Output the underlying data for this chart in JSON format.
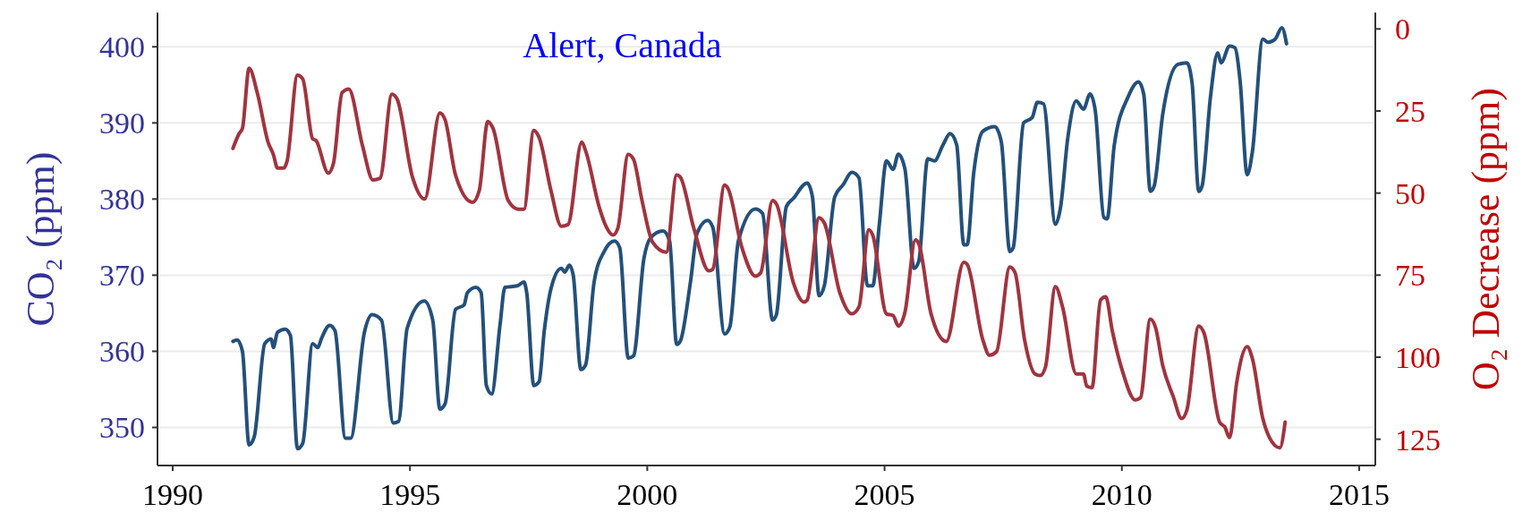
{
  "chart_data": {
    "type": "line",
    "title": "Alert, Canada",
    "ylabel": "CO₂ (ppm)",
    "y2label": "O₂ Decrease (ppm)",
    "xlim": [
      1989.68,
      2015.34
    ],
    "xticks": [
      1990,
      1995,
      2000,
      2005,
      2010,
      2015
    ],
    "ylim": [
      345,
      404.5
    ],
    "yticks": [
      350,
      360,
      370,
      380,
      390,
      400
    ],
    "y2lim": [
      133,
      -5
    ],
    "y2ticks": [
      0,
      25,
      50,
      75,
      100,
      125
    ],
    "grid": "y",
    "line_style": "solid",
    "series": [
      {
        "color": "#24507a",
        "x": [
          1991.27,
          1991.36,
          1991.47,
          1991.61,
          1991.72,
          1991.94,
          1992.08,
          1992.12,
          1992.21,
          1992.37,
          1992.48,
          1992.63,
          1992.74,
          1992.95,
          1993.06,
          1993.13,
          1993.31,
          1993.42,
          1993.64,
          1993.75,
          1994.04,
          1994.2,
          1994.4,
          1994.65,
          1994.76,
          1994.94,
          1995.3,
          1995.48,
          1995.63,
          1995.74,
          1995.96,
          1996.14,
          1996.21,
          1996.39,
          1996.5,
          1996.61,
          1996.72,
          1996.9,
          1997.0,
          1997.26,
          1997.4,
          1997.46,
          1997.61,
          1997.72,
          1997.83,
          1997.97,
          1998.19,
          1998.26,
          1998.36,
          1998.44,
          1998.6,
          1998.7,
          1998.88,
          1999.09,
          1999.31,
          1999.42,
          1999.6,
          1999.71,
          1999.93,
          2000.07,
          2000.33,
          2000.47,
          2000.62,
          2000.7,
          2000.91,
          2001.05,
          2001.27,
          2001.38,
          2001.63,
          2001.74,
          2001.92,
          2002.28,
          2002.43,
          2002.64,
          2002.72,
          2002.93,
          2003.08,
          2003.37,
          2003.48,
          2003.62,
          2003.73,
          2003.95,
          2004.13,
          2004.31,
          2004.46,
          2004.64,
          2004.75,
          2004.89,
          2005.04,
          2005.18,
          2005.29,
          2005.43,
          2005.62,
          2005.72,
          2005.91,
          2006.05,
          2006.23,
          2006.38,
          2006.52,
          2006.67,
          2006.74,
          2006.88,
          2007.07,
          2007.32,
          2007.46,
          2007.64,
          2007.71,
          2007.93,
          2008.11,
          2008.22,
          2008.35,
          2008.6,
          2008.71,
          2008.86,
          2009.04,
          2009.19,
          2009.33,
          2009.44,
          2009.62,
          2009.69,
          2009.84,
          2010.13,
          2010.35,
          2010.46,
          2010.6,
          2010.68,
          2010.86,
          2011.18,
          2011.37,
          2011.48,
          2011.62,
          2011.69,
          2011.87,
          2012.02,
          2012.09,
          2012.27,
          2012.38,
          2012.49,
          2012.64,
          2012.75,
          2012.97,
          2013.08,
          2013.23,
          2013.37,
          2013.47
        ],
        "values": [
          361.3,
          361.5,
          360.0,
          347.7,
          348.8,
          361.0,
          361.6,
          360.5,
          362.5,
          362.9,
          362.1,
          347.2,
          347.9,
          361.0,
          360.5,
          361.6,
          363.4,
          362.7,
          348.6,
          348.6,
          362.5,
          364.8,
          364.1,
          350.6,
          350.8,
          363.0,
          366.6,
          364.1,
          352.4,
          353.1,
          365.5,
          366.1,
          367.7,
          368.4,
          367.7,
          355.5,
          354.4,
          363.6,
          368.4,
          368.6,
          369.1,
          367.7,
          355.5,
          356.0,
          362.7,
          368.2,
          370.9,
          370.4,
          371.3,
          370.0,
          357.6,
          358.2,
          369.1,
          373.1,
          374.5,
          373.6,
          359.1,
          359.4,
          372.2,
          374.9,
          375.8,
          374.5,
          360.9,
          361.4,
          369.1,
          375.5,
          377.2,
          376.3,
          362.3,
          363.2,
          374.5,
          378.7,
          378.1,
          364.1,
          364.8,
          379.0,
          380.1,
          382.1,
          380.3,
          367.3,
          368.6,
          380.3,
          381.9,
          383.5,
          382.8,
          368.6,
          368.6,
          376.7,
          385.0,
          383.9,
          385.9,
          383.9,
          370.9,
          371.8,
          385.3,
          385.0,
          387.1,
          388.6,
          387.1,
          374.0,
          374.0,
          383.5,
          388.9,
          389.5,
          387.5,
          373.1,
          373.6,
          390.0,
          390.7,
          392.7,
          392.5,
          376.7,
          379.0,
          388.0,
          392.9,
          391.8,
          393.8,
          391.6,
          377.6,
          377.4,
          387.1,
          393.4,
          395.4,
          393.8,
          381.0,
          381.7,
          391.1,
          397.7,
          397.9,
          395.2,
          381.0,
          381.7,
          393.6,
          399.2,
          397.9,
          400.1,
          399.9,
          395.6,
          383.2,
          386.2,
          401.0,
          400.6,
          401.0,
          402.5,
          400.4
        ]
      },
      {
        "color": "#a0343f",
        "axis": "y2",
        "x": [
          1991.27,
          1991.4,
          1991.47,
          1991.61,
          1991.79,
          1992.01,
          1992.12,
          1992.21,
          1992.34,
          1992.41,
          1992.63,
          1992.74,
          1992.95,
          1993.02,
          1993.28,
          1993.39,
          1993.57,
          1993.71,
          1994.0,
          1994.22,
          1994.37,
          1994.62,
          1994.73,
          1995.05,
          1995.31,
          1995.63,
          1995.74,
          1995.96,
          1996.32,
          1996.46,
          1996.64,
          1996.75,
          1997.07,
          1997.28,
          1997.4,
          1997.61,
          1997.72,
          1997.97,
          1998.19,
          1998.33,
          1998.62,
          1998.7,
          1998.99,
          1999.13,
          1999.28,
          1999.38,
          1999.6,
          1999.71,
          1999.89,
          2000.11,
          2000.4,
          2000.62,
          2000.69,
          2000.98,
          2001.3,
          2001.38,
          2001.63,
          2001.7,
          2001.99,
          2002.28,
          2002.39,
          2002.64,
          2002.72,
          2003.08,
          2003.3,
          2003.37,
          2003.62,
          2003.73,
          2004.06,
          2004.31,
          2004.46,
          2004.67,
          2004.75,
          2005.04,
          2005.18,
          2005.29,
          2005.43,
          2005.65,
          2005.72,
          2005.98,
          2006.3,
          2006.67,
          2006.74,
          2007.07,
          2007.21,
          2007.36,
          2007.64,
          2007.75,
          2007.95,
          2008.17,
          2008.28,
          2008.39,
          2008.6,
          2008.75,
          2009.04,
          2009.19,
          2009.26,
          2009.37,
          2009.55,
          2009.66,
          2009.8,
          2010.02,
          2010.28,
          2010.39,
          2010.6,
          2010.71,
          2010.86,
          2011.08,
          2011.26,
          2011.37,
          2011.62,
          2011.73,
          2012.06,
          2012.17,
          2012.27,
          2012.42,
          2012.64,
          2012.75,
          2012.97,
          2013.11,
          2013.33,
          2013.44
        ],
        "values": [
          36.4,
          31.9,
          30.3,
          12.0,
          19.9,
          34.5,
          38.2,
          42.4,
          42.4,
          40.3,
          14.1,
          15.2,
          33.5,
          34.0,
          43.9,
          40.8,
          19.4,
          18.3,
          35.6,
          46.0,
          45.5,
          19.9,
          21.4,
          45.0,
          51.8,
          25.6,
          27.7,
          44.5,
          52.8,
          49.2,
          28.2,
          30.3,
          52.3,
          54.9,
          54.9,
          30.9,
          33.0,
          49.2,
          60.1,
          59.6,
          34.5,
          37.1,
          54.4,
          60.1,
          62.8,
          60.7,
          38.2,
          39.7,
          52.3,
          64.9,
          68.0,
          44.5,
          45.0,
          60.7,
          73.7,
          73.2,
          47.6,
          48.6,
          66.4,
          75.3,
          74.3,
          52.3,
          53.3,
          77.4,
          83.2,
          82.6,
          57.5,
          59.1,
          80.5,
          86.8,
          84.7,
          61.2,
          62.8,
          86.8,
          87.3,
          90.5,
          86.3,
          64.3,
          65.4,
          86.8,
          95.2,
          71.1,
          71.7,
          94.7,
          99.4,
          98.3,
          72.5,
          74.3,
          94.7,
          105.1,
          105.6,
          103.0,
          78.5,
          84.7,
          105.1,
          105.1,
          108.8,
          109.3,
          82.6,
          81.6,
          92.1,
          104.6,
          113.0,
          112.4,
          88.4,
          91.0,
          102.5,
          111.9,
          118.7,
          116.1,
          90.5,
          92.6,
          119.8,
          121.3,
          124.5,
          107.7,
          96.8,
          100.4,
          118.7,
          124.5,
          127.6,
          119.8
        ]
      }
    ]
  }
}
